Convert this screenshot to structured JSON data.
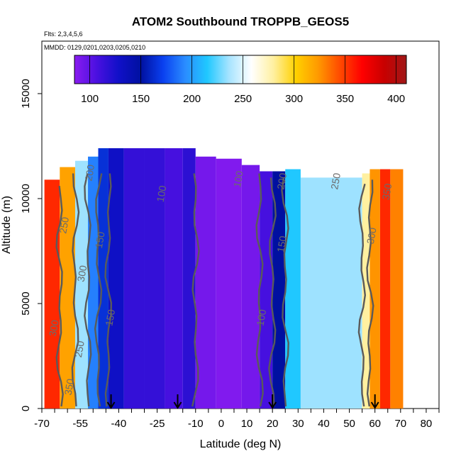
{
  "chart_data": {
    "type": "heatmap",
    "title": "ATOM2 Southbound TROPPB_GEOS5",
    "flights_note": "Flts: 2,3,4,5,6",
    "dates_note": "MMDD: 0129,0201,0203,0205,0210",
    "xlabel": "Latitude (deg N)",
    "ylabel": "Altitude (m)",
    "xlim": [
      -70,
      85
    ],
    "ylim": [
      0,
      17500
    ],
    "x_ticks": [
      "-70",
      "-55",
      "-40",
      "-25",
      "-10",
      "0",
      "10",
      "20",
      "30",
      "40",
      "50",
      "60",
      "70",
      "80"
    ],
    "y_ticks": [
      "0",
      "5000",
      "10000",
      "15000"
    ],
    "colorbar": {
      "range": [
        85,
        410
      ],
      "ticks": [
        "100",
        "150",
        "200",
        "250",
        "300",
        "350",
        "400"
      ],
      "colors": [
        "#8a1cf0",
        "#4a10e0",
        "#1010c8",
        "#0010a0",
        "#0a40f0",
        "#2a8cff",
        "#20c8ff",
        "#a8e4ff",
        "#ffffff",
        "#fff0a0",
        "#ffd000",
        "#ff9a00",
        "#ff4a00",
        "#ff0000",
        "#c80000",
        "#a01818"
      ]
    },
    "bands": [
      {
        "x0": -69,
        "x1": -63,
        "ytop": 10900,
        "value": 355
      },
      {
        "x0": -63,
        "x1": -57,
        "ytop": 11500,
        "value": 320
      },
      {
        "x0": -57,
        "x1": -52,
        "ytop": 11800,
        "value": 235
      },
      {
        "x0": -52,
        "x1": -48,
        "ytop": 12000,
        "value": 190
      },
      {
        "x0": -48,
        "x1": -44,
        "ytop": 12400,
        "value": 165
      },
      {
        "x0": -44,
        "x1": -38,
        "ytop": 12400,
        "value": 130
      },
      {
        "x0": -38,
        "x1": -30,
        "ytop": 12400,
        "value": 115
      },
      {
        "x0": -30,
        "x1": -22,
        "ytop": 12400,
        "value": 115
      },
      {
        "x0": -22,
        "x1": -15,
        "ytop": 12400,
        "value": 108
      },
      {
        "x0": -15,
        "x1": -10,
        "ytop": 12400,
        "value": 118
      },
      {
        "x0": -10,
        "x1": -2,
        "ytop": 12000,
        "value": 92
      },
      {
        "x0": -2,
        "x1": 8,
        "ytop": 11900,
        "value": 88
      },
      {
        "x0": 8,
        "x1": 15,
        "ytop": 11600,
        "value": 92
      },
      {
        "x0": 15,
        "x1": 20,
        "ytop": 11300,
        "value": 108
      },
      {
        "x0": 20,
        "x1": 25,
        "ytop": 11300,
        "value": 150
      },
      {
        "x0": 25,
        "x1": 31,
        "ytop": 11400,
        "value": 215
      },
      {
        "x0": 31,
        "x1": 55,
        "ytop": 11000,
        "value": 235
      },
      {
        "x0": 55,
        "x1": 58,
        "ytop": 11200,
        "value": 280
      },
      {
        "x0": 58,
        "x1": 62,
        "ytop": 11400,
        "value": 325
      },
      {
        "x0": 62,
        "x1": 66,
        "ytop": 11400,
        "value": 355
      },
      {
        "x0": 66,
        "x1": 71,
        "ytop": 11400,
        "value": 330
      }
    ],
    "contour_labels": [
      {
        "x": -64,
        "y": 3800,
        "text": "300"
      },
      {
        "x": -58,
        "y": 1000,
        "text": "350"
      },
      {
        "x": -54,
        "y": 2800,
        "text": "250"
      },
      {
        "x": -53,
        "y": 6400,
        "text": "300"
      },
      {
        "x": -60,
        "y": 8700,
        "text": "250"
      },
      {
        "x": -50,
        "y": 11200,
        "text": "200"
      },
      {
        "x": -46,
        "y": 8000,
        "text": "150"
      },
      {
        "x": -42,
        "y": 4300,
        "text": "150"
      },
      {
        "x": -22,
        "y": 10200,
        "text": "100"
      },
      {
        "x": 8,
        "y": 10900,
        "text": "100"
      },
      {
        "x": 17,
        "y": 4300,
        "text": "100"
      },
      {
        "x": 25,
        "y": 7800,
        "text": "150"
      },
      {
        "x": 25,
        "y": 10800,
        "text": "200"
      },
      {
        "x": 46,
        "y": 10800,
        "text": "250"
      },
      {
        "x": 60,
        "y": 8200,
        "text": "300"
      },
      {
        "x": 66,
        "y": 10300,
        "text": "350"
      }
    ],
    "arrows_at_lat": [
      -43,
      -17,
      20,
      60
    ]
  }
}
